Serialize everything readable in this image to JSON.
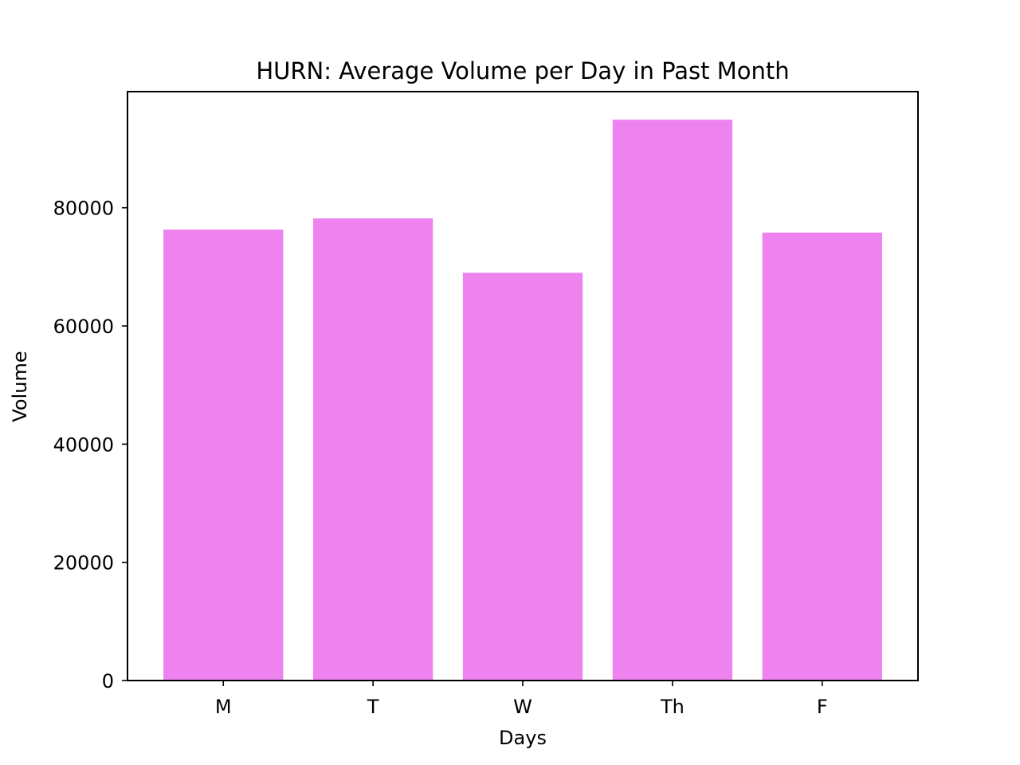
{
  "chart_data": {
    "type": "bar",
    "title": "HURN: Average Volume per Day in Past Month",
    "xlabel": "Days",
    "ylabel": "Volume",
    "categories": [
      "M",
      "T",
      "W",
      "Th",
      "F"
    ],
    "values": [
      76300,
      78200,
      69000,
      94900,
      75800
    ],
    "ylim": [
      0,
      99650
    ],
    "yticks": [
      0,
      20000,
      40000,
      60000,
      80000
    ],
    "ytick_labels": [
      "0",
      "20000",
      "40000",
      "60000",
      "80000"
    ],
    "bar_color": "#ee82ee",
    "grid": false,
    "legend": "none"
  }
}
